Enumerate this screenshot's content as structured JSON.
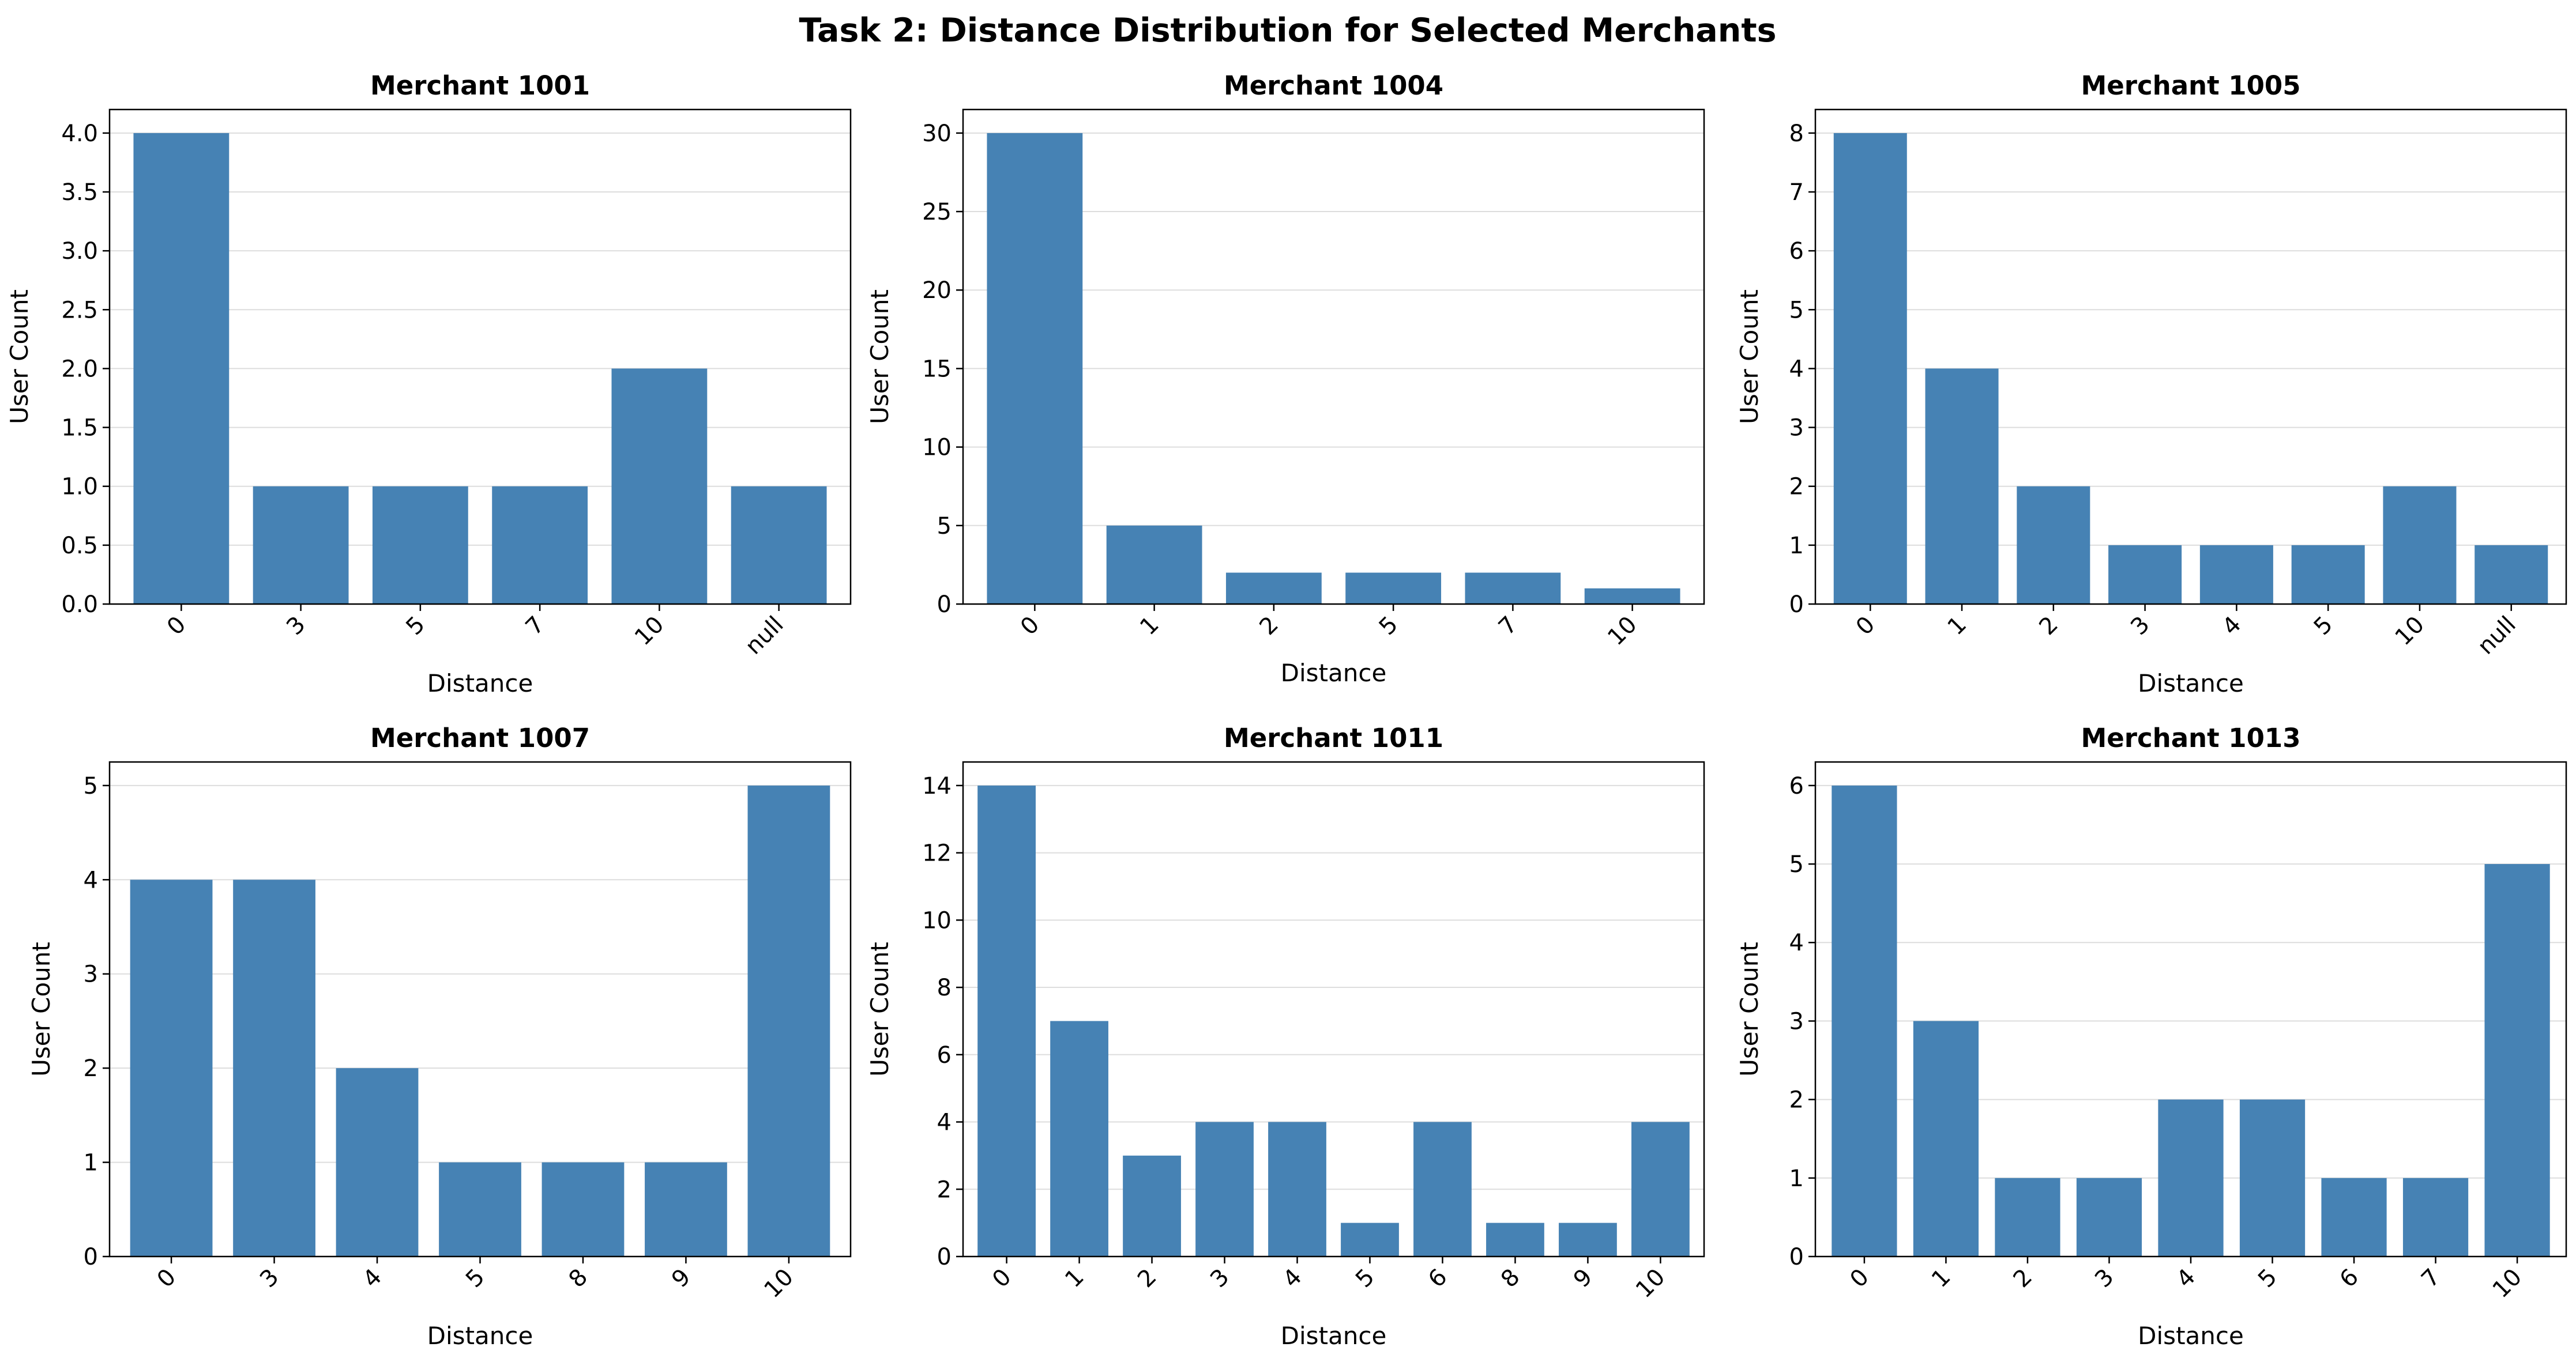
{
  "figure": {
    "title": "Task 2: Distance Distribution for Selected Merchants"
  },
  "chart_data": [
    {
      "type": "bar",
      "title": "Merchant 1001",
      "xlabel": "Distance",
      "ylabel": "User Count",
      "categories": [
        "0",
        "3",
        "5",
        "7",
        "10",
        "null"
      ],
      "values": [
        4,
        1,
        1,
        1,
        2,
        1
      ],
      "ylim": [
        0,
        4.2
      ],
      "yticks": [
        "0.0",
        "0.5",
        "1.0",
        "1.5",
        "2.0",
        "2.5",
        "3.0",
        "3.5",
        "4.0"
      ],
      "color": "#4682b4",
      "grid": "y"
    },
    {
      "type": "bar",
      "title": "Merchant 1004",
      "xlabel": "Distance",
      "ylabel": "User Count",
      "categories": [
        "0",
        "1",
        "2",
        "5",
        "7",
        "10"
      ],
      "values": [
        30,
        5,
        2,
        2,
        2,
        1
      ],
      "ylim": [
        0,
        31.5
      ],
      "yticks": [
        "0",
        "5",
        "10",
        "15",
        "20",
        "25",
        "30"
      ],
      "color": "#4682b4",
      "grid": "y"
    },
    {
      "type": "bar",
      "title": "Merchant 1005",
      "xlabel": "Distance",
      "ylabel": "User Count",
      "categories": [
        "0",
        "1",
        "2",
        "3",
        "4",
        "5",
        "10",
        "null"
      ],
      "values": [
        8,
        4,
        2,
        1,
        1,
        1,
        2,
        1
      ],
      "ylim": [
        0,
        8.4
      ],
      "yticks": [
        "0",
        "1",
        "2",
        "3",
        "4",
        "5",
        "6",
        "7",
        "8"
      ],
      "color": "#4682b4",
      "grid": "y"
    },
    {
      "type": "bar",
      "title": "Merchant 1007",
      "xlabel": "Distance",
      "ylabel": "User Count",
      "categories": [
        "0",
        "3",
        "4",
        "5",
        "8",
        "9",
        "10"
      ],
      "values": [
        4,
        4,
        2,
        1,
        1,
        1,
        5
      ],
      "ylim": [
        0,
        5.25
      ],
      "yticks": [
        "0",
        "1",
        "2",
        "3",
        "4",
        "5"
      ],
      "color": "#4682b4",
      "grid": "y"
    },
    {
      "type": "bar",
      "title": "Merchant 1011",
      "xlabel": "Distance",
      "ylabel": "User Count",
      "categories": [
        "0",
        "1",
        "2",
        "3",
        "4",
        "5",
        "6",
        "8",
        "9",
        "10"
      ],
      "values": [
        14,
        7,
        3,
        4,
        4,
        1,
        4,
        1,
        1,
        4
      ],
      "ylim": [
        0,
        14.7
      ],
      "yticks": [
        "0",
        "2",
        "4",
        "6",
        "8",
        "10",
        "12",
        "14"
      ],
      "color": "#4682b4",
      "grid": "y"
    },
    {
      "type": "bar",
      "title": "Merchant 1013",
      "xlabel": "Distance",
      "ylabel": "User Count",
      "categories": [
        "0",
        "1",
        "2",
        "3",
        "4",
        "5",
        "6",
        "7",
        "10"
      ],
      "values": [
        6,
        3,
        1,
        1,
        2,
        2,
        1,
        1,
        5
      ],
      "ylim": [
        0,
        6.3
      ],
      "yticks": [
        "0",
        "1",
        "2",
        "3",
        "4",
        "5",
        "6"
      ],
      "color": "#4682b4",
      "grid": "y"
    }
  ]
}
